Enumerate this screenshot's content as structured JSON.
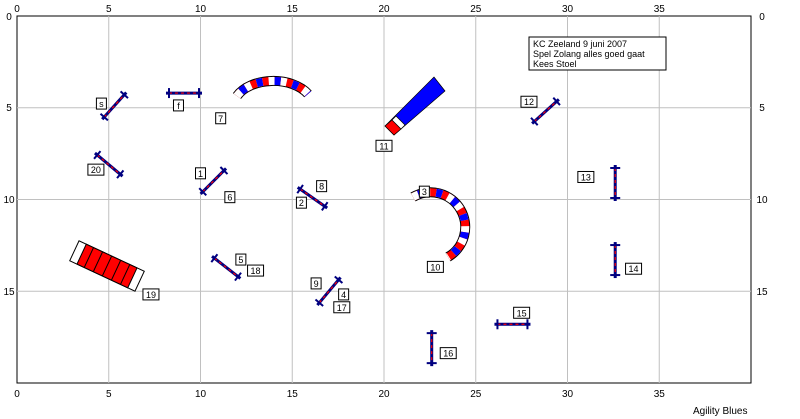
{
  "course": {
    "info_lines": [
      "KC Zeeland 9 juni 2007",
      "Spel  Zolang alles goed gaat",
      "Kees Stoel"
    ],
    "credit": "Agility Blues",
    "x_ticks_top": [
      "0",
      "5",
      "10",
      "15",
      "20",
      "25",
      "30",
      "35"
    ],
    "x_ticks_bottom": [
      "0",
      "5",
      "10",
      "15",
      "20",
      "25",
      "30",
      "35"
    ],
    "y_ticks_left": [
      "0",
      "5",
      "10",
      "15"
    ],
    "y_ticks_right": [
      "0",
      "5",
      "10",
      "15"
    ],
    "field": {
      "width_m": 40,
      "height_m": 20,
      "grid_step_m": 5
    },
    "colors": {
      "red": "#ff0000",
      "blue": "#0000ff",
      "navy": "#000080",
      "grid": "#c0c0c0"
    },
    "jumps": [
      {
        "label": "1",
        "x": 10.7,
        "y": 9.0,
        "angle": -45
      },
      {
        "label": "2",
        "x": 16.1,
        "y": 9.9,
        "angle": 35
      },
      {
        "label": "4",
        "x": 17.0,
        "y": 15.0,
        "angle": -50
      },
      {
        "label": "5",
        "x": 11.4,
        "y": 13.7,
        "angle": 38
      },
      {
        "label": "8",
        "x": 16.1,
        "y": 9.9,
        "angle": 35
      },
      {
        "label": "9",
        "x": 17.0,
        "y": 15.0,
        "angle": -50
      },
      {
        "label": "12",
        "x": 28.8,
        "y": 5.2,
        "angle": -42
      },
      {
        "label": "13",
        "x": 32.6,
        "y": 9.1,
        "angle": 90
      },
      {
        "label": "14",
        "x": 32.6,
        "y": 13.3,
        "angle": 90
      },
      {
        "label": "15",
        "x": 27.0,
        "y": 16.8,
        "angle": 0
      },
      {
        "label": "16",
        "x": 22.6,
        "y": 18.1,
        "angle": 90
      },
      {
        "label": "20",
        "x": 5.0,
        "y": 8.1,
        "angle": 40
      },
      {
        "label": "s",
        "x": 5.3,
        "y": 4.9,
        "angle": -48
      },
      {
        "label": "f",
        "x": 9.1,
        "y": 4.2,
        "angle": 0
      }
    ],
    "labels": [
      {
        "text": "s",
        "x": 4.6,
        "y": 4.8
      },
      {
        "text": "f",
        "x": 8.8,
        "y": 4.9
      },
      {
        "text": "7",
        "x": 11.1,
        "y": 5.6
      },
      {
        "text": "20",
        "x": 4.3,
        "y": 8.4
      },
      {
        "text": "1",
        "x": 10.0,
        "y": 8.6
      },
      {
        "text": "6",
        "x": 11.6,
        "y": 9.9
      },
      {
        "text": "8",
        "x": 16.6,
        "y": 9.3
      },
      {
        "text": "2",
        "x": 15.5,
        "y": 10.2
      },
      {
        "text": "11",
        "x": 20.0,
        "y": 7.1
      },
      {
        "text": "3",
        "x": 22.2,
        "y": 9.6
      },
      {
        "text": "10",
        "x": 22.8,
        "y": 13.7
      },
      {
        "text": "12",
        "x": 27.9,
        "y": 4.7
      },
      {
        "text": "13",
        "x": 31.0,
        "y": 8.8
      },
      {
        "text": "14",
        "x": 33.6,
        "y": 13.8
      },
      {
        "text": "5",
        "x": 12.2,
        "y": 13.3
      },
      {
        "text": "18",
        "x": 13.0,
        "y": 13.9
      },
      {
        "text": "9",
        "x": 16.3,
        "y": 14.6
      },
      {
        "text": "4",
        "x": 17.8,
        "y": 15.2
      },
      {
        "text": "17",
        "x": 17.7,
        "y": 15.9
      },
      {
        "text": "19",
        "x": 7.3,
        "y": 15.2
      },
      {
        "text": "15",
        "x": 27.5,
        "y": 16.2
      },
      {
        "text": "16",
        "x": 23.5,
        "y": 18.4
      }
    ]
  }
}
